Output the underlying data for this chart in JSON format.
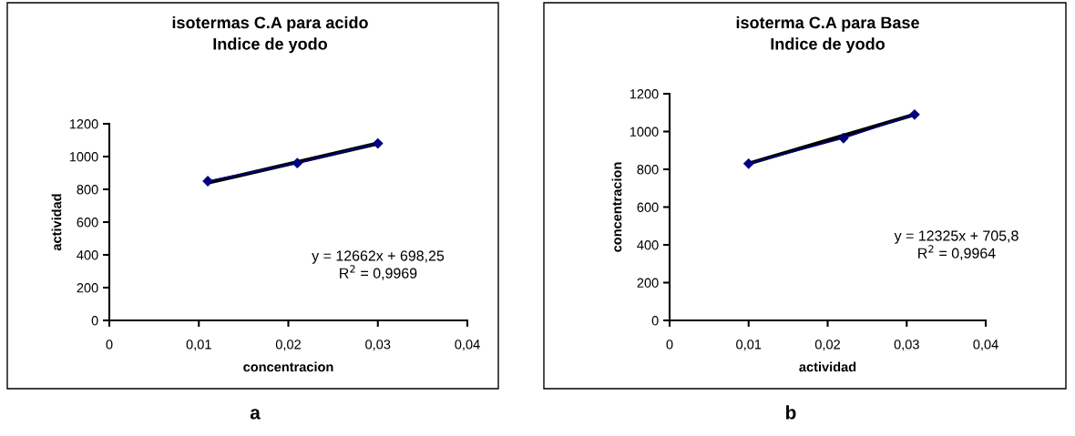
{
  "chart_data": [
    {
      "type": "line",
      "title": "isotermas C.A para acido\nIndice de yodo",
      "xlabel": "concentracion",
      "ylabel": "actividad",
      "x": [
        0.011,
        0.021,
        0.03
      ],
      "series": [
        {
          "color": "#000080",
          "values": [
            850,
            960,
            1080
          ],
          "marker": "diamond"
        },
        {
          "type": "line",
          "color": "#000000",
          "x": [
            0.011,
            0.03
          ],
          "values": [
            840,
            1080
          ],
          "marker": "none"
        }
      ],
      "xlim": [
        0,
        0.04
      ],
      "xticks": [
        0,
        {
          "value": 0.01,
          "label": "0,01"
        },
        {
          "value": 0.02,
          "label": "0,02"
        },
        {
          "value": 0.03,
          "label": "0,03"
        },
        {
          "value": 0.04,
          "label": "0,04"
        }
      ],
      "ylim": [
        0,
        1200
      ],
      "yticks": [
        0,
        200,
        400,
        600,
        800,
        1000,
        1200
      ],
      "grid": false,
      "legend": false,
      "annotations": [
        "y = 12662x + 698,25\nR$^{2}$ = 0,9969",
        "a"
      ]
    },
    {
      "type": "line",
      "title": "isoterma C.A para Base\nIndice de yodo",
      "xlabel": "actividad",
      "ylabel": "concentracion",
      "x": [
        0.01,
        0.022,
        0.031
      ],
      "series": [
        {
          "color": "#000080",
          "values": [
            830,
            965,
            1090
          ],
          "marker": "diamond"
        },
        {
          "type": "line",
          "color": "#000000",
          "x": [
            0.01,
            0.031
          ],
          "values": [
            830,
            1090
          ],
          "marker": "none"
        }
      ],
      "xlim": [
        0,
        0.04
      ],
      "xticks": [
        0,
        {
          "value": 0.01,
          "label": "0,01"
        },
        {
          "value": 0.02,
          "label": "0,02"
        },
        {
          "value": 0.03,
          "label": "0,03"
        },
        {
          "value": 0.04,
          "label": "0,04"
        }
      ],
      "ylim": [
        0,
        1200
      ],
      "yticks": [
        0,
        200,
        400,
        600,
        800,
        1000,
        1200
      ],
      "grid": false,
      "legend": false,
      "annotations": [
        "y = 12325x + 705,8\nR$^{2}$ = 0,9964",
        "b"
      ]
    }
  ]
}
